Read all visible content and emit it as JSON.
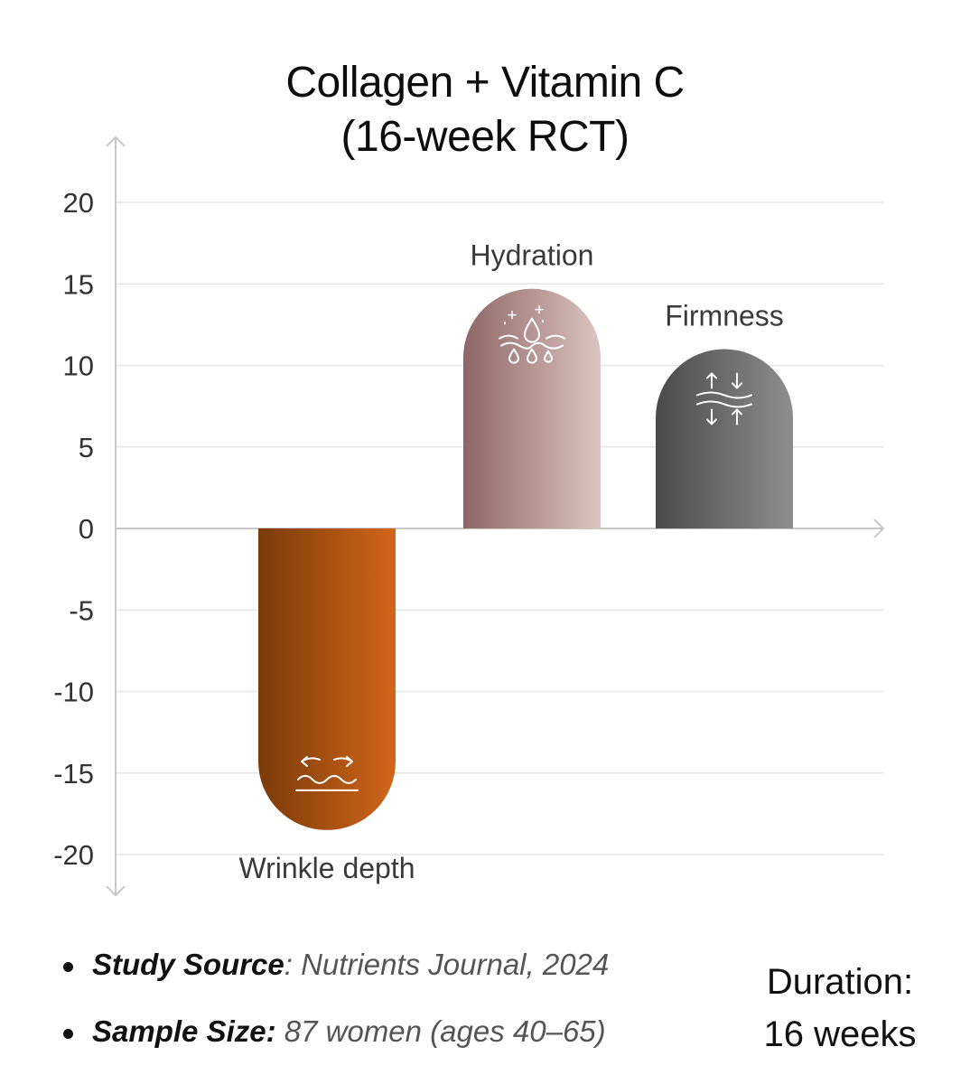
{
  "chart_data": {
    "type": "bar",
    "title_lines": [
      "Collagen + Vitamin C",
      "(16-week RCT)"
    ],
    "categories": [
      "Wrinkle depth",
      "Hydration",
      "Firmness"
    ],
    "values": [
      -18.5,
      14.7,
      11.0
    ],
    "icons": [
      "wrinkle-smoothing-icon",
      "hydration-droplet-icon",
      "firmness-compress-icon"
    ],
    "colors": [
      [
        "#7a3a08",
        "#d2661a"
      ],
      [
        "#8e6666",
        "#dcc5c1"
      ],
      [
        "#4a4a4a",
        "#8e8e8e"
      ]
    ],
    "yticks": [
      20,
      15,
      10,
      5,
      0,
      -5,
      -10,
      -15,
      -20
    ],
    "ytick_labels": [
      "20",
      "15",
      "10",
      "5",
      "0",
      "-5",
      "-10",
      "-15",
      "-20"
    ],
    "ylim": [
      -22.5,
      24
    ],
    "xlabel": "",
    "ylabel": "",
    "grid": true
  },
  "notes": {
    "source_label": "Study Source",
    "source_sep": ": ",
    "source_value": "Nutrients Journal, 2024",
    "sample_label": "Sample Size:",
    "sample_value": " 87 women (ages 40–65)"
  },
  "duration": {
    "label": "Duration:",
    "value": "16 weeks"
  }
}
